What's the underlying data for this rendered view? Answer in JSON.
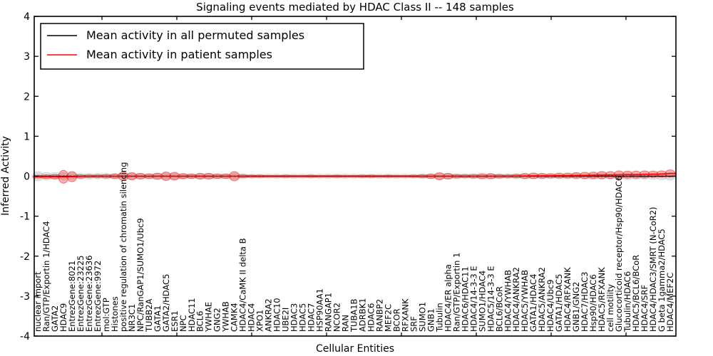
{
  "window": {
    "background": "#ffffff"
  },
  "chart_data": {
    "type": "violin",
    "title": "Signaling events mediated by HDAC Class II -- 148 samples",
    "xlabel": "Cellular Entities",
    "ylabel": "Inferred Activity",
    "ylim": [
      -4,
      4
    ],
    "yticks": [
      4,
      3,
      2,
      1,
      0,
      -1,
      -2,
      -3,
      -4
    ],
    "grid": false,
    "legend_position": "upper left",
    "zero_line": {
      "style": "dotted",
      "color": "#000000",
      "value": 0
    },
    "series": [
      {
        "name": "Mean activity in all permuted samples",
        "color": "#000000",
        "style": "solid",
        "mean": 0
      },
      {
        "name": "Mean activity in patient samples",
        "color": "#ff0000",
        "style": "solid"
      }
    ],
    "colors": {
      "patient_fill": "rgba(255,70,70,0.42)",
      "patient_edge": "rgba(215,40,40,0.55)",
      "permuted_fill": "rgba(150,150,150,0.32)",
      "permuted_line": "#000000",
      "patient_line": "#ff0000"
    },
    "entities": [
      {
        "label": "nuclear import",
        "patient_spread": 0.036,
        "permuted_spread": 0.125,
        "patient_mean": -0.01
      },
      {
        "label": "Ran/GTP/Exportin 1/HDAC4",
        "patient_spread": 0.045,
        "permuted_spread": 0.107,
        "patient_mean": -0.01
      },
      {
        "label": "GATA2",
        "patient_spread": 0.054,
        "permuted_spread": 0.098,
        "patient_mean": -0.01
      },
      {
        "label": "HDAC9",
        "patient_spread": 0.161,
        "permuted_spread": 0.098,
        "patient_mean": -0.015
      },
      {
        "label": "EntrezGene:8021",
        "patient_spread": 0.125,
        "permuted_spread": 0.089,
        "patient_mean": -0.01
      },
      {
        "label": "EntrezGene:23225",
        "patient_spread": 0.045,
        "permuted_spread": 0.08,
        "patient_mean": -0.005
      },
      {
        "label": "EntrezGene:23636",
        "patient_spread": 0.036,
        "permuted_spread": 0.08,
        "patient_mean": 0
      },
      {
        "label": "EntrezGene:9972",
        "patient_spread": 0.036,
        "permuted_spread": 0.08,
        "patient_mean": 0
      },
      {
        "label": "mol:GTP",
        "patient_spread": 0.045,
        "permuted_spread": 0.08,
        "patient_mean": 0
      },
      {
        "label": "Histones",
        "patient_spread": 0.054,
        "permuted_spread": 0.08,
        "patient_mean": 0
      },
      {
        "label": "positive regulation of chromatin silencing",
        "patient_spread": 0.107,
        "permuted_spread": 0.089,
        "patient_mean": 0
      },
      {
        "label": "NR3C1",
        "patient_spread": 0.089,
        "permuted_spread": 0.089,
        "patient_mean": 0
      },
      {
        "label": "NPC/RanGAP1/SUMO1/Ubc9",
        "patient_spread": 0.071,
        "permuted_spread": 0.08,
        "patient_mean": 0
      },
      {
        "label": "TUBB2A",
        "patient_spread": 0.054,
        "permuted_spread": 0.08,
        "patient_mean": 0
      },
      {
        "label": "GATA1",
        "patient_spread": 0.08,
        "permuted_spread": 0.08,
        "patient_mean": 0
      },
      {
        "label": "GATA2/HDAC5",
        "patient_spread": 0.107,
        "permuted_spread": 0.089,
        "patient_mean": 0
      },
      {
        "label": "ESR1",
        "patient_spread": 0.098,
        "permuted_spread": 0.08,
        "patient_mean": 0
      },
      {
        "label": "NPC",
        "patient_spread": 0.062,
        "permuted_spread": 0.08,
        "patient_mean": 0
      },
      {
        "label": "HDAC11",
        "patient_spread": 0.054,
        "permuted_spread": 0.071,
        "patient_mean": 0
      },
      {
        "label": "BCL6",
        "patient_spread": 0.071,
        "permuted_spread": 0.08,
        "patient_mean": 0
      },
      {
        "label": "YWHAE",
        "patient_spread": 0.071,
        "permuted_spread": 0.08,
        "patient_mean": 0
      },
      {
        "label": "GNG2",
        "patient_spread": 0.054,
        "permuted_spread": 0.071,
        "patient_mean": 0
      },
      {
        "label": "YWHAB",
        "patient_spread": 0.054,
        "permuted_spread": 0.071,
        "patient_mean": 0
      },
      {
        "label": "CAMK4",
        "patient_spread": 0.116,
        "permuted_spread": 0.089,
        "patient_mean": 0
      },
      {
        "label": "HDAC4/CaMK II delta B",
        "patient_spread": 0.036,
        "permuted_spread": 0.071,
        "patient_mean": 0
      },
      {
        "label": "HDAC4",
        "patient_spread": 0.027,
        "permuted_spread": 0.062,
        "patient_mean": 0
      },
      {
        "label": "XPO1",
        "patient_spread": 0.027,
        "permuted_spread": 0.062,
        "patient_mean": 0
      },
      {
        "label": "ANKRA2",
        "patient_spread": 0.021,
        "permuted_spread": 0.062,
        "patient_mean": 0
      },
      {
        "label": "HDAC10",
        "patient_spread": 0.021,
        "permuted_spread": 0.062,
        "patient_mean": 0
      },
      {
        "label": "UBE2I",
        "patient_spread": 0.027,
        "permuted_spread": 0.062,
        "patient_mean": 0
      },
      {
        "label": "HDAC3",
        "patient_spread": 0.021,
        "permuted_spread": 0.062,
        "patient_mean": 0
      },
      {
        "label": "HDAC5",
        "patient_spread": 0.021,
        "permuted_spread": 0.062,
        "patient_mean": 0
      },
      {
        "label": "HDAC7",
        "patient_spread": 0.027,
        "permuted_spread": 0.062,
        "patient_mean": 0
      },
      {
        "label": "HSP90AA1",
        "patient_spread": 0.021,
        "permuted_spread": 0.062,
        "patient_mean": 0
      },
      {
        "label": "RANGAP1",
        "patient_spread": 0.021,
        "permuted_spread": 0.062,
        "patient_mean": 0
      },
      {
        "label": "NCOR2",
        "patient_spread": 0.027,
        "permuted_spread": 0.062,
        "patient_mean": 0
      },
      {
        "label": "RAN",
        "patient_spread": 0.021,
        "permuted_spread": 0.062,
        "patient_mean": 0
      },
      {
        "label": "TUBA1B",
        "patient_spread": 0.021,
        "permuted_spread": 0.062,
        "patient_mean": 0
      },
      {
        "label": "ADRBK1",
        "patient_spread": 0.027,
        "permuted_spread": 0.062,
        "patient_mean": 0
      },
      {
        "label": "HDAC6",
        "patient_spread": 0.027,
        "permuted_spread": 0.062,
        "patient_mean": 0
      },
      {
        "label": "RANBP2",
        "patient_spread": 0.021,
        "permuted_spread": 0.062,
        "patient_mean": 0
      },
      {
        "label": "MEF2C",
        "patient_spread": 0.027,
        "permuted_spread": 0.062,
        "patient_mean": 0
      },
      {
        "label": "BCOR",
        "patient_spread": 0.021,
        "permuted_spread": 0.062,
        "patient_mean": 0
      },
      {
        "label": "RFXANK",
        "patient_spread": 0.021,
        "permuted_spread": 0.062,
        "patient_mean": 0
      },
      {
        "label": "SRF",
        "patient_spread": 0.027,
        "permuted_spread": 0.062,
        "patient_mean": 0
      },
      {
        "label": "SUMO1",
        "patient_spread": 0.036,
        "permuted_spread": 0.071,
        "patient_mean": 0
      },
      {
        "label": "GNB1",
        "patient_spread": 0.054,
        "permuted_spread": 0.071,
        "patient_mean": 0
      },
      {
        "label": "Tubulin",
        "patient_spread": 0.089,
        "permuted_spread": 0.08,
        "patient_mean": 0
      },
      {
        "label": "HDAC4/ER alpha",
        "patient_spread": 0.071,
        "permuted_spread": 0.08,
        "patient_mean": 0
      },
      {
        "label": "Ran/GTP/Exportin 1",
        "patient_spread": 0.045,
        "permuted_spread": 0.071,
        "patient_mean": 0
      },
      {
        "label": "HDAC6/HDAC11",
        "patient_spread": 0.036,
        "permuted_spread": 0.071,
        "patient_mean": 0
      },
      {
        "label": "HDAC4/14-3-3 E",
        "patient_spread": 0.045,
        "permuted_spread": 0.071,
        "patient_mean": 0
      },
      {
        "label": "SUMO1/HDAC4",
        "patient_spread": 0.054,
        "permuted_spread": 0.089,
        "patient_mean": 0
      },
      {
        "label": "HDAC5/14-3-3 E",
        "patient_spread": 0.062,
        "permuted_spread": 0.08,
        "patient_mean": 0
      },
      {
        "label": "BCL6/BCoR",
        "patient_spread": 0.045,
        "permuted_spread": 0.071,
        "patient_mean": 0
      },
      {
        "label": "HDAC4/YWHAB",
        "patient_spread": 0.036,
        "permuted_spread": 0.071,
        "patient_mean": 0
      },
      {
        "label": "HDAC4/ANKRA2",
        "patient_spread": 0.045,
        "permuted_spread": 0.071,
        "patient_mean": 0.005
      },
      {
        "label": "HDAC5/YWHAB",
        "patient_spread": 0.062,
        "permuted_spread": 0.08,
        "patient_mean": 0.005
      },
      {
        "label": "GATA1/HDAC4",
        "patient_spread": 0.071,
        "permuted_spread": 0.071,
        "patient_mean": 0.01
      },
      {
        "label": "HDAC5/ANKRA2",
        "patient_spread": 0.062,
        "permuted_spread": 0.071,
        "patient_mean": 0.01
      },
      {
        "label": "HDAC4/Ubc9",
        "patient_spread": 0.054,
        "permuted_spread": 0.071,
        "patient_mean": 0.01
      },
      {
        "label": "GATA1/HDAC5",
        "patient_spread": 0.062,
        "permuted_spread": 0.071,
        "patient_mean": 0.015
      },
      {
        "label": "HDAC4/RFXANK",
        "patient_spread": 0.062,
        "permuted_spread": 0.071,
        "patient_mean": 0.015
      },
      {
        "label": "GNB1/GNG2",
        "patient_spread": 0.071,
        "permuted_spread": 0.08,
        "patient_mean": 0.02
      },
      {
        "label": "HDAC7/HDAC3",
        "patient_spread": 0.08,
        "permuted_spread": 0.08,
        "patient_mean": 0.02
      },
      {
        "label": "Hsp90/HDAC6",
        "patient_spread": 0.08,
        "permuted_spread": 0.089,
        "patient_mean": 0.025
      },
      {
        "label": "HDAC5/RFXANK",
        "patient_spread": 0.089,
        "permuted_spread": 0.089,
        "patient_mean": 0.03
      },
      {
        "label": "cell motility",
        "patient_spread": 0.089,
        "permuted_spread": 0.08,
        "patient_mean": 0.03
      },
      {
        "label": "Glucocorticoid receptor/Hsp90/HDAC6",
        "patient_spread": 0.098,
        "permuted_spread": 0.089,
        "patient_mean": 0.035
      },
      {
        "label": "Tubulin/HDAC6",
        "patient_spread": 0.089,
        "permuted_spread": 0.098,
        "patient_mean": 0.04
      },
      {
        "label": "HDAC5/BCL6/BCoR",
        "patient_spread": 0.089,
        "permuted_spread": 0.089,
        "patient_mean": 0.04
      },
      {
        "label": "HDAC4/SRF",
        "patient_spread": 0.089,
        "permuted_spread": 0.089,
        "patient_mean": 0.045
      },
      {
        "label": "HDAC4/HDAC3/SMRT (N-CoR2)",
        "patient_spread": 0.08,
        "permuted_spread": 0.089,
        "patient_mean": 0.05
      },
      {
        "label": "G beta 1gamma2/HDAC5",
        "patient_spread": 0.08,
        "permuted_spread": 0.098,
        "patient_mean": 0.055
      },
      {
        "label": "HDAC4/MEF2C",
        "patient_spread": 0.089,
        "permuted_spread": 0.107,
        "patient_mean": 0.07
      }
    ]
  }
}
